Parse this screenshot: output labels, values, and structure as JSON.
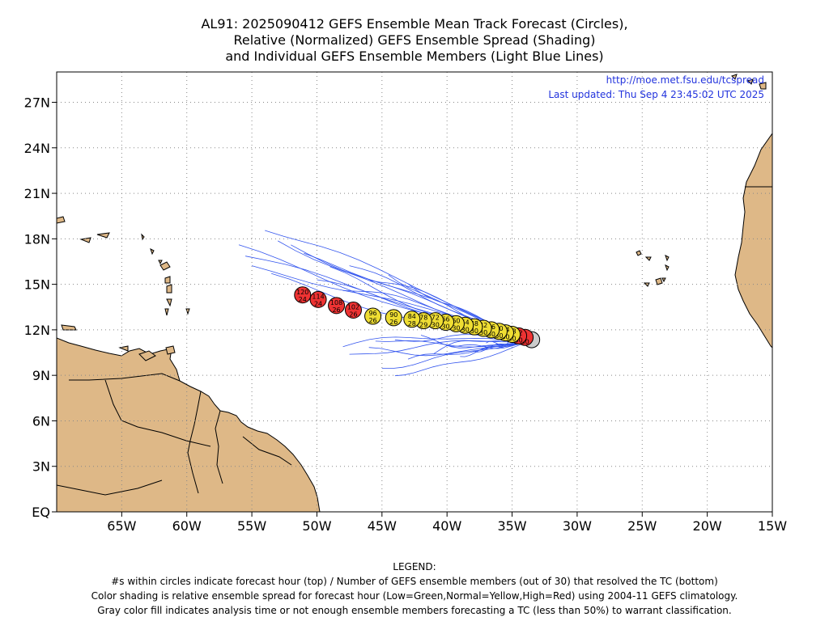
{
  "title": {
    "line1": "AL91: 2025090412 GEFS Ensemble Mean Track Forecast (Circles),",
    "line2": "Relative (Normalized) GEFS Ensemble Spread (Shading)",
    "line3": "and Individual GEFS Ensemble Members (Light Blue Lines)"
  },
  "header_links": {
    "url": "http://moe.met.fsu.edu/tcspread",
    "updated": "Last updated: Thu Sep  4 23:45:02 UTC 2025"
  },
  "axes": {
    "lat_labels": [
      "27N",
      "24N",
      "21N",
      "18N",
      "15N",
      "12N",
      "9N",
      "6N",
      "3N",
      "EQ"
    ],
    "lon_labels": [
      "65W",
      "60W",
      "55W",
      "50W",
      "45W",
      "40W",
      "35W",
      "30W",
      "25W",
      "20W",
      "15W"
    ],
    "lon_range": [
      -70,
      -15
    ],
    "lat_range": [
      0,
      29
    ]
  },
  "colors": {
    "land": "#deb887",
    "member_tracks": "#3355ee",
    "high_spread": "#ee3333",
    "normal_spread": "#eedd33",
    "analysis": "#cccccc",
    "link_text": "#2233dd"
  },
  "forecast_points": [
    {
      "hour": "0",
      "members": "",
      "lon": -33.5,
      "lat": 11.35,
      "spread": "gray"
    },
    {
      "hour": "6",
      "members": "30",
      "lon": -34.0,
      "lat": 11.5,
      "spread": "red"
    },
    {
      "hour": "12",
      "members": "30",
      "lon": -34.5,
      "lat": 11.6,
      "spread": "red"
    },
    {
      "hour": "18",
      "members": "30",
      "lon": -35.0,
      "lat": 11.7,
      "spread": "yellow"
    },
    {
      "hour": "24",
      "members": "30",
      "lon": -35.5,
      "lat": 11.8,
      "spread": "yellow"
    },
    {
      "hour": "30",
      "members": "30",
      "lon": -36.0,
      "lat": 11.9,
      "spread": "yellow"
    },
    {
      "hour": "36",
      "members": "30",
      "lon": -36.6,
      "lat": 12.0,
      "spread": "yellow"
    },
    {
      "hour": "42",
      "members": "30",
      "lon": -37.2,
      "lat": 12.1,
      "spread": "yellow"
    },
    {
      "hour": "48",
      "members": "30",
      "lon": -37.9,
      "lat": 12.2,
      "spread": "yellow"
    },
    {
      "hour": "54",
      "members": "30",
      "lon": -38.6,
      "lat": 12.3,
      "spread": "yellow"
    },
    {
      "hour": "60",
      "members": "30",
      "lon": -39.3,
      "lat": 12.4,
      "spread": "yellow"
    },
    {
      "hour": "66",
      "members": "30",
      "lon": -40.1,
      "lat": 12.5,
      "spread": "yellow"
    },
    {
      "hour": "72",
      "members": "30",
      "lon": -40.9,
      "lat": 12.6,
      "spread": "yellow"
    },
    {
      "hour": "78",
      "members": "29",
      "lon": -41.8,
      "lat": 12.6,
      "spread": "yellow"
    },
    {
      "hour": "84",
      "members": "28",
      "lon": -42.7,
      "lat": 12.7,
      "spread": "yellow"
    },
    {
      "hour": "90",
      "members": "26",
      "lon": -44.1,
      "lat": 12.8,
      "spread": "yellow"
    },
    {
      "hour": "96",
      "members": "26",
      "lon": -45.7,
      "lat": 12.9,
      "spread": "yellow"
    },
    {
      "hour": "102",
      "members": "26",
      "lon": -47.2,
      "lat": 13.3,
      "spread": "red"
    },
    {
      "hour": "108",
      "members": "26",
      "lon": -48.5,
      "lat": 13.6,
      "spread": "red"
    },
    {
      "hour": "114",
      "members": "24",
      "lon": -49.9,
      "lat": 14.0,
      "spread": "red"
    },
    {
      "hour": "120",
      "members": "24",
      "lon": -51.1,
      "lat": 14.3,
      "spread": "red"
    }
  ],
  "legend": {
    "heading": "LEGEND:",
    "line1": "#s within circles indicate forecast hour (top) / Number of GEFS ensemble members (out of 30) that resolved the TC (bottom)",
    "line2": "Color shading is relative ensemble spread for forecast hour (Low=Green,Normal=Yellow,High=Red) using 2004-11 GEFS climatology.",
    "line3": "Gray color fill indicates analysis time or not enough ensemble members forecasting a TC (less than 50%) to warrant classification."
  }
}
